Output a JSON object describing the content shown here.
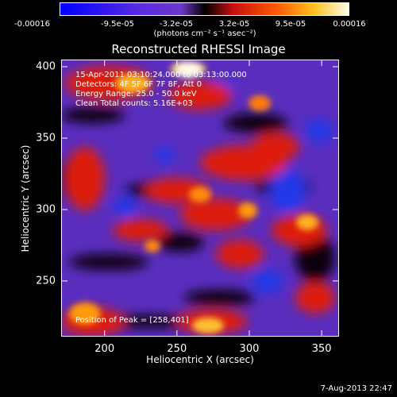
{
  "colorbar": {
    "ticks": [
      "-0.00016",
      "-9.5e-05",
      "-3.2e-05",
      "3.2e-05",
      "9.5e-05",
      "0.00016"
    ],
    "units": "(photons cm⁻² s⁻¹ asec⁻²)"
  },
  "chart_data": {
    "type": "heatmap",
    "title": "Reconstructed RHESSI Image",
    "xlabel": "Heliocentric X (arcsec)",
    "ylabel": "Heliocentric Y (arcsec)",
    "xlim": [
      170,
      362
    ],
    "ylim": [
      211,
      405
    ],
    "x_ticks": [
      "200",
      "250",
      "300",
      "350"
    ],
    "y_ticks": [
      "250",
      "300",
      "350",
      "400"
    ],
    "x_tick_values": [
      200,
      250,
      300,
      350
    ],
    "y_tick_values": [
      250,
      300,
      350,
      400
    ],
    "color_range": [
      -0.00016,
      0.00016
    ],
    "colormap": [
      "#0000ff",
      "#5a2ce0",
      "#6a38c8",
      "#000000",
      "#c81010",
      "#ff5a00",
      "#ffc020",
      "#fffbe8"
    ],
    "peak": [
      258,
      401
    ],
    "annotations": {
      "time": "15-Apr-2011 03:10:24.000 to 03:13:00.000",
      "detectors": "Detectors: 4F 5F 6F 7F 8F, Att 0",
      "energy": "Energy Range: 25.0 - 50.0 keV",
      "method": "Clean     Total counts: 5.16E+03",
      "peak": "Position of Peak = [258,401]"
    }
  },
  "footer": {
    "date": "7-Aug-2013 22:47"
  }
}
